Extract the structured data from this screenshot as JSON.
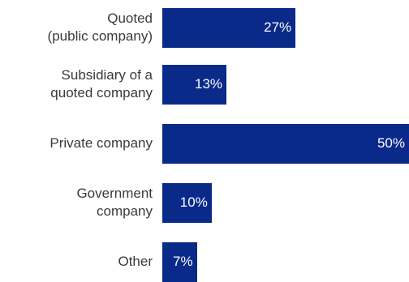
{
  "chart_data": {
    "type": "bar",
    "orientation": "horizontal",
    "categories": [
      [
        "Quoted",
        "(public company)"
      ],
      [
        "Subsidiary of a",
        "quoted company"
      ],
      [
        "Private company"
      ],
      [
        "Government",
        "company"
      ],
      [
        "Other"
      ]
    ],
    "values": [
      27,
      13,
      50,
      10,
      7
    ],
    "value_labels": [
      "27%",
      "13%",
      "50%",
      "10%",
      "7%"
    ],
    "xlim": [
      0,
      50
    ],
    "colors": {
      "bar": "#0a2a8a",
      "value_label": "#ffffff",
      "category_label": "#3a3a3a"
    }
  }
}
